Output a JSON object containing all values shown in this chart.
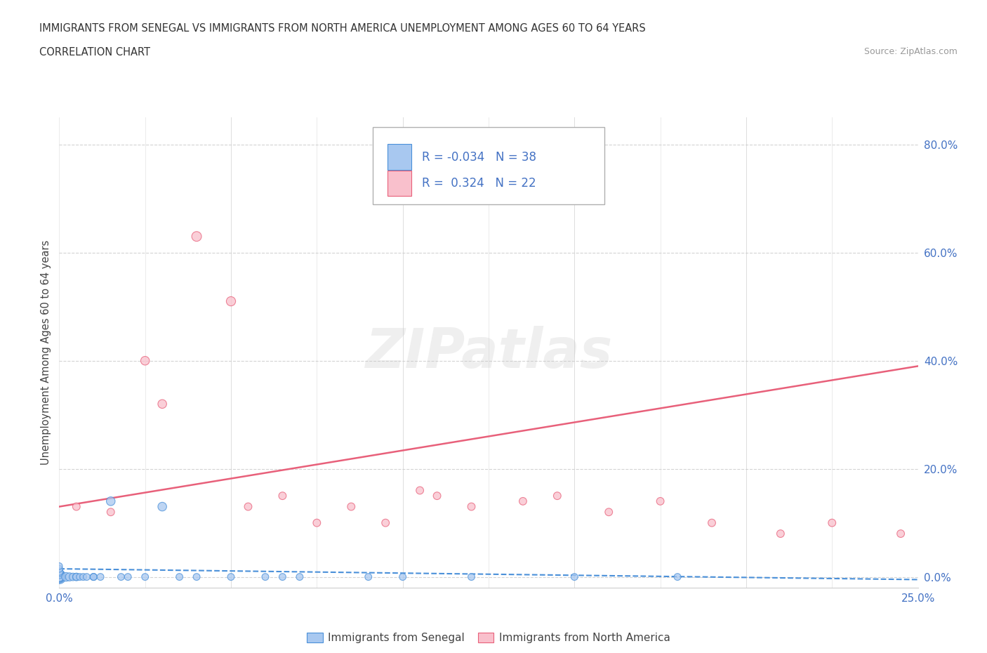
{
  "title_line1": "IMMIGRANTS FROM SENEGAL VS IMMIGRANTS FROM NORTH AMERICA UNEMPLOYMENT AMONG AGES 60 TO 64 YEARS",
  "title_line2": "CORRELATION CHART",
  "source_text": "Source: ZipAtlas.com",
  "ylabel": "Unemployment Among Ages 60 to 64 years",
  "xlim": [
    0.0,
    0.25
  ],
  "ylim": [
    -0.02,
    0.85
  ],
  "ytick_labels": [
    "0.0%",
    "20.0%",
    "40.0%",
    "60.0%",
    "80.0%"
  ],
  "ytick_values": [
    0.0,
    0.2,
    0.4,
    0.6,
    0.8
  ],
  "xtick_labels": [
    "0.0%",
    "",
    "",
    "",
    "",
    "",
    "",
    "",
    "",
    "",
    "25.0%"
  ],
  "xtick_values": [
    0.0,
    0.025,
    0.05,
    0.075,
    0.1,
    0.125,
    0.15,
    0.175,
    0.2,
    0.225,
    0.25
  ],
  "senegal_x": [
    0.0,
    0.0,
    0.0,
    0.0,
    0.0,
    0.0,
    0.0,
    0.0,
    0.0,
    0.0,
    0.002,
    0.003,
    0.004,
    0.005,
    0.005,
    0.006,
    0.007,
    0.008,
    0.01,
    0.01,
    0.01,
    0.012,
    0.015,
    0.018,
    0.02,
    0.025,
    0.03,
    0.035,
    0.04,
    0.05,
    0.06,
    0.065,
    0.07,
    0.09,
    0.1,
    0.12,
    0.15,
    0.18
  ],
  "senegal_y": [
    0.0,
    0.0,
    0.0,
    0.0,
    0.0,
    0.005,
    0.008,
    0.01,
    0.015,
    0.02,
    0.0,
    0.0,
    0.0,
    0.0,
    0.0,
    0.0,
    0.0,
    0.0,
    0.0,
    0.0,
    0.0,
    0.0,
    0.14,
    0.0,
    0.0,
    0.0,
    0.13,
    0.0,
    0.0,
    0.0,
    0.0,
    0.0,
    0.0,
    0.0,
    0.0,
    0.0,
    0.0,
    0.0
  ],
  "senegal_sizes": [
    200,
    150,
    120,
    100,
    90,
    80,
    70,
    60,
    50,
    45,
    80,
    70,
    60,
    60,
    55,
    50,
    50,
    50,
    50,
    50,
    50,
    50,
    80,
    50,
    50,
    50,
    80,
    50,
    50,
    50,
    50,
    50,
    50,
    50,
    50,
    50,
    50,
    50
  ],
  "senegal_color": "#a8c8f0",
  "senegal_edge_color": "#4a90d9",
  "senegal_alpha": 0.75,
  "senegal_R": -0.034,
  "senegal_N": 38,
  "north_america_x": [
    0.005,
    0.015,
    0.025,
    0.03,
    0.04,
    0.05,
    0.055,
    0.065,
    0.075,
    0.085,
    0.095,
    0.105,
    0.11,
    0.12,
    0.135,
    0.145,
    0.16,
    0.175,
    0.19,
    0.21,
    0.225,
    0.245
  ],
  "north_america_y": [
    0.13,
    0.12,
    0.4,
    0.32,
    0.63,
    0.51,
    0.13,
    0.15,
    0.1,
    0.13,
    0.1,
    0.16,
    0.15,
    0.13,
    0.14,
    0.15,
    0.12,
    0.14,
    0.1,
    0.08,
    0.1,
    0.08
  ],
  "north_america_sizes": [
    60,
    60,
    80,
    80,
    100,
    90,
    60,
    60,
    60,
    60,
    60,
    60,
    60,
    60,
    60,
    60,
    60,
    60,
    60,
    60,
    60,
    60
  ],
  "north_america_color": "#f9c0cc",
  "north_america_edge_color": "#e8607a",
  "north_america_alpha": 0.75,
  "north_america_R": 0.324,
  "north_america_N": 22,
  "senegal_trend_x": [
    0.0,
    0.25
  ],
  "senegal_trend_y": [
    0.015,
    -0.005
  ],
  "north_america_trend_x": [
    0.0,
    0.25
  ],
  "north_america_trend_y": [
    0.13,
    0.39
  ],
  "legend_R_color": "#4472c4",
  "grid_color": "#c8c8c8",
  "background_color": "#ffffff"
}
